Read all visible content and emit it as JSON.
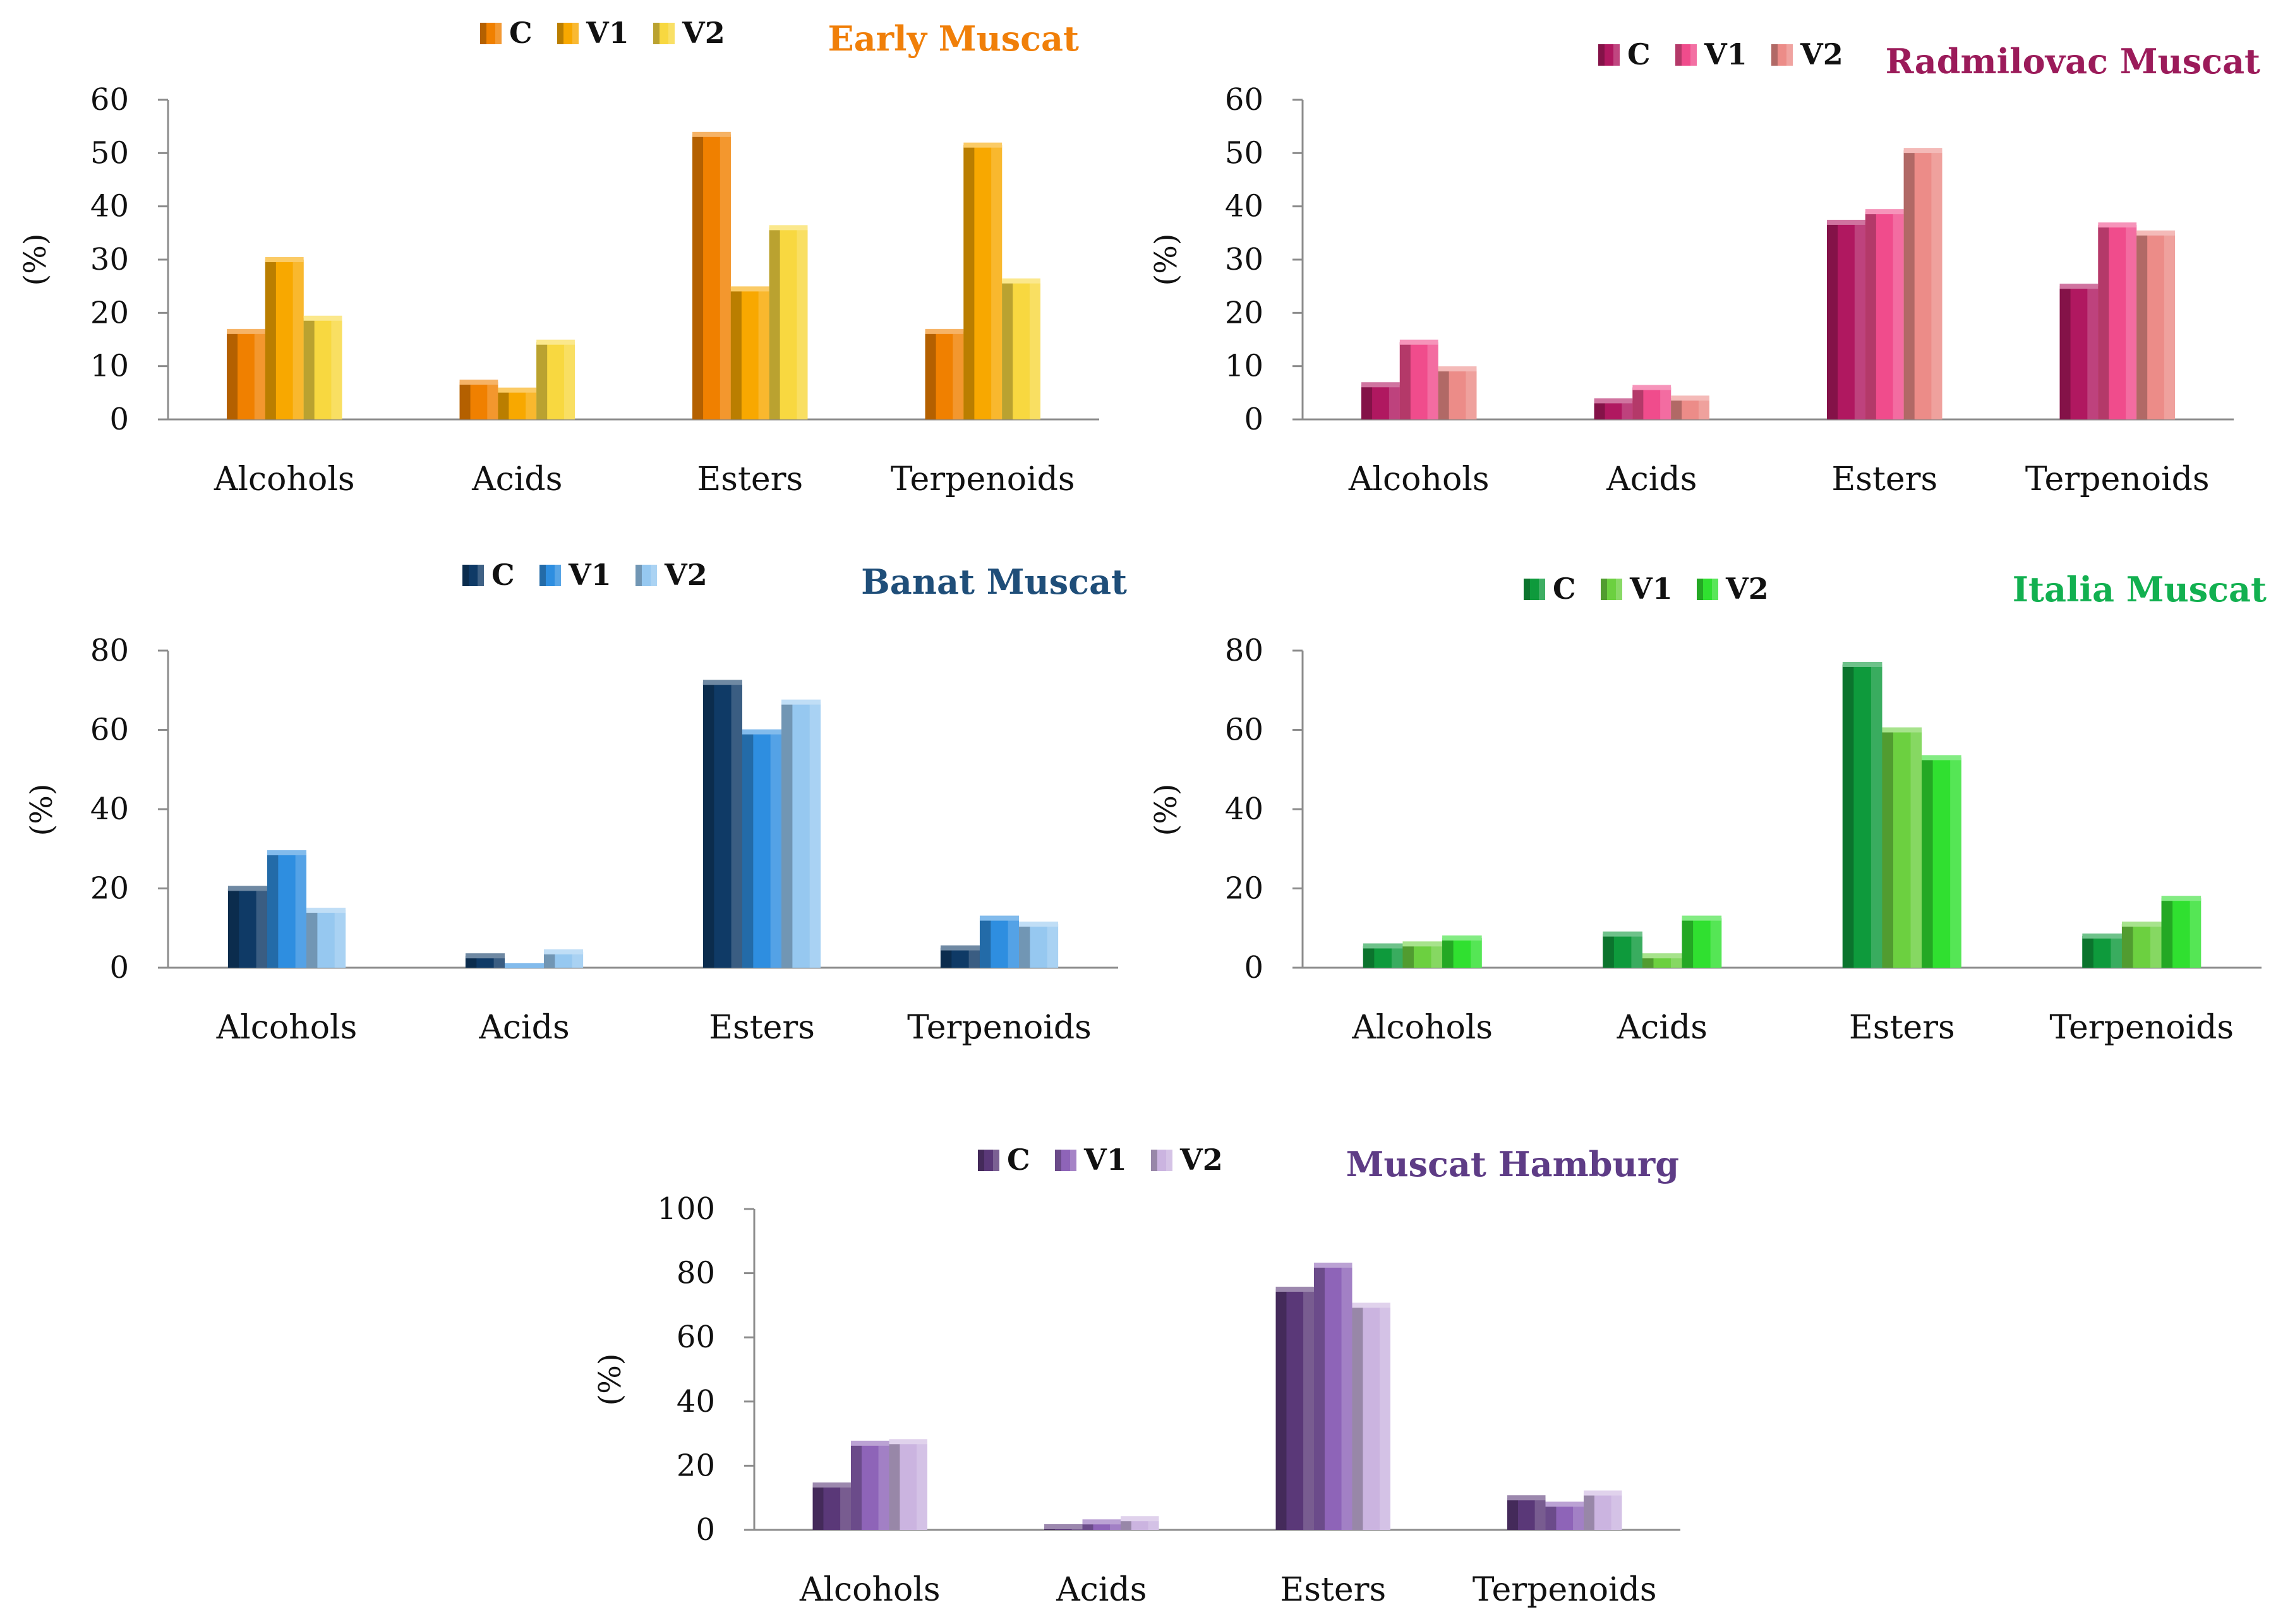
{
  "chart_data": [
    {
      "type": "bar",
      "title": "Early Muscat",
      "title_color": "#F07F09",
      "ylabel": "(%)",
      "categories": [
        "Alcohols",
        "Acids",
        "Esters",
        "Terpenoids"
      ],
      "ylim": [
        0,
        60
      ],
      "yticks": [
        0,
        10,
        20,
        30,
        40,
        50,
        60
      ],
      "legend": "top-center",
      "series": [
        {
          "name": "C",
          "color": "#F08000",
          "values": [
            16.5,
            7,
            53.5,
            16.5
          ]
        },
        {
          "name": "V1",
          "color": "#F8A800",
          "values": [
            30,
            5.5,
            24.5,
            51.5
          ]
        },
        {
          "name": "V2",
          "color": "#F8D840",
          "values": [
            19,
            14.5,
            36,
            26
          ]
        }
      ]
    },
    {
      "type": "bar",
      "title": "Radmilovac Muscat",
      "title_color": "#9B1B5A",
      "ylabel": "(%)",
      "categories": [
        "Alcohols",
        "Acids",
        "Esters",
        "Terpenoids"
      ],
      "ylim": [
        0,
        60
      ],
      "yticks": [
        0,
        10,
        20,
        30,
        40,
        50,
        60
      ],
      "legend": "top-center",
      "series": [
        {
          "name": "C",
          "color": "#B01860",
          "values": [
            6.5,
            3.5,
            37,
            25
          ]
        },
        {
          "name": "V1",
          "color": "#F04C8C",
          "values": [
            14.5,
            6,
            39,
            36.5
          ]
        },
        {
          "name": "V2",
          "color": "#EC8C88",
          "values": [
            9.5,
            4,
            50.5,
            35
          ]
        }
      ]
    },
    {
      "type": "bar",
      "title": "Banat Muscat",
      "title_color": "#1F4E79",
      "ylabel": "(%)",
      "categories": [
        "Alcohols",
        "Acids",
        "Esters",
        "Terpenoids"
      ],
      "ylim": [
        0,
        80
      ],
      "yticks": [
        0,
        20,
        40,
        60,
        80
      ],
      "legend": "top-center",
      "series": [
        {
          "name": "C",
          "color": "#0F3A66",
          "values": [
            20,
            3,
            72,
            5
          ]
        },
        {
          "name": "V1",
          "color": "#2E8EE0",
          "values": [
            29,
            0.5,
            59.5,
            12.5
          ]
        },
        {
          "name": "V2",
          "color": "#96C8F0",
          "values": [
            14.5,
            4,
            67,
            11
          ]
        }
      ]
    },
    {
      "type": "bar",
      "title": "Italia Muscat",
      "title_color": "#12B050",
      "ylabel": "(%)",
      "categories": [
        "Alcohols",
        "Acids",
        "Esters",
        "Terpenoids"
      ],
      "ylim": [
        0,
        80
      ],
      "yticks": [
        0,
        20,
        40,
        60,
        80
      ],
      "legend": "top-center",
      "series": [
        {
          "name": "C",
          "color": "#0E9A3C",
          "values": [
            5.5,
            8.5,
            76.5,
            8
          ]
        },
        {
          "name": "V1",
          "color": "#6CD040",
          "values": [
            6,
            3,
            60,
            11
          ]
        },
        {
          "name": "V2",
          "color": "#30E030",
          "values": [
            7.5,
            12.5,
            53,
            17.5
          ]
        }
      ]
    },
    {
      "type": "bar",
      "title": "Muscat Hamburg",
      "title_color": "#5E3C86",
      "ylabel": "(%)",
      "categories": [
        "Alcohols",
        "Acids",
        "Esters",
        "Terpenoids"
      ],
      "ylim": [
        0,
        100
      ],
      "yticks": [
        0,
        20,
        40,
        60,
        80,
        100
      ],
      "legend": "top-center",
      "series": [
        {
          "name": "C",
          "color": "#5A3878",
          "values": [
            14,
            1,
            75,
            10
          ]
        },
        {
          "name": "V1",
          "color": "#8E64B8",
          "values": [
            27,
            2.5,
            82.5,
            8
          ]
        },
        {
          "name": "V2",
          "color": "#CBB4E0",
          "values": [
            27.5,
            3.5,
            70,
            11.5
          ]
        }
      ]
    }
  ]
}
